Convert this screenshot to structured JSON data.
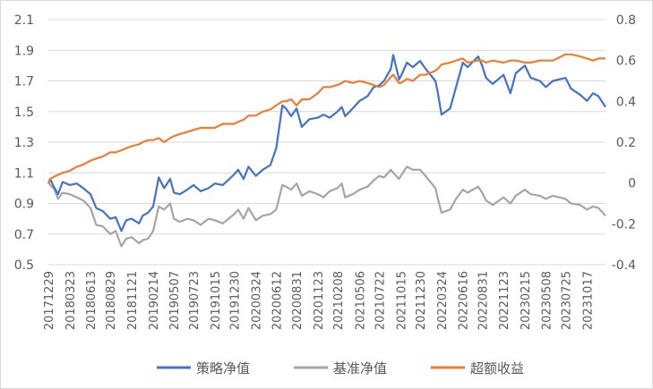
{
  "chart_data": {
    "type": "line",
    "y_left": {
      "min": 0.5,
      "max": 2.1,
      "ticks": [
        "2.1",
        "1.9",
        "1.7",
        "1.5",
        "1.3",
        "1.1",
        "0.9",
        "0.7",
        "0.5"
      ]
    },
    "y_right": {
      "min": -0.4,
      "max": 0.8,
      "ticks": [
        "0.8",
        "0.6",
        "0.4",
        "0.2",
        "0",
        "-0.2",
        "-0.4"
      ]
    },
    "x_ticks": [
      "20171229",
      "20180323",
      "20180613",
      "20180829",
      "20181121",
      "20190214",
      "20190507",
      "20190723",
      "20191015",
      "20191230",
      "20200324",
      "20200612",
      "20200831",
      "20201123",
      "20210208",
      "20210506",
      "20210722",
      "20211015",
      "20211230",
      "20220324",
      "20220616",
      "20220831",
      "20221123",
      "20230215",
      "20230508",
      "20230725",
      "20231017"
    ],
    "grid": true,
    "legend_position": "bottom",
    "series": [
      {
        "name": "策略净值",
        "axis": "left",
        "color": "#4472c4",
        "values": [
          [
            "20171229",
            1.03
          ],
          [
            "20180105",
            1.06
          ],
          [
            "20180119",
            1.01
          ],
          [
            "20180205",
            0.96
          ],
          [
            "20180223",
            1.04
          ],
          [
            "20180323",
            1.02
          ],
          [
            "20180420",
            1.03
          ],
          [
            "20180515",
            1.0
          ],
          [
            "20180613",
            0.96
          ],
          [
            "20180705",
            0.87
          ],
          [
            "20180731",
            0.85
          ],
          [
            "20180829",
            0.8
          ],
          [
            "20180920",
            0.81
          ],
          [
            "20181012",
            0.72
          ],
          [
            "20181031",
            0.79
          ],
          [
            "20181121",
            0.8
          ],
          [
            "20181221",
            0.77
          ],
          [
            "20190104",
            0.82
          ],
          [
            "20190125",
            0.84
          ],
          [
            "20190214",
            0.88
          ],
          [
            "20190308",
            1.07
          ],
          [
            "20190329",
            1.0
          ],
          [
            "20190422",
            1.06
          ],
          [
            "20190507",
            0.97
          ],
          [
            "20190530",
            0.96
          ],
          [
            "20190628",
            0.99
          ],
          [
            "20190723",
            1.02
          ],
          [
            "20190820",
            0.98
          ],
          [
            "20190920",
            1.0
          ],
          [
            "20191015",
            1.03
          ],
          [
            "20191115",
            1.02
          ],
          [
            "20191230",
            1.09
          ],
          [
            "20200114",
            1.12
          ],
          [
            "20200205",
            1.06
          ],
          [
            "20200224",
            1.14
          ],
          [
            "20200324",
            1.08
          ],
          [
            "20200420",
            1.12
          ],
          [
            "20200520",
            1.15
          ],
          [
            "20200612",
            1.26
          ],
          [
            "20200706",
            1.54
          ],
          [
            "20200720",
            1.52
          ],
          [
            "20200810",
            1.47
          ],
          [
            "20200831",
            1.52
          ],
          [
            "20200921",
            1.4
          ],
          [
            "20201020",
            1.45
          ],
          [
            "20201123",
            1.46
          ],
          [
            "20201215",
            1.48
          ],
          [
            "20210108",
            1.46
          ],
          [
            "20210208",
            1.5
          ],
          [
            "20210225",
            1.53
          ],
          [
            "20210310",
            1.47
          ],
          [
            "20210409",
            1.52
          ],
          [
            "20210506",
            1.57
          ],
          [
            "20210606",
            1.6
          ],
          [
            "20210630",
            1.66
          ],
          [
            "20210722",
            1.67
          ],
          [
            "20210810",
            1.7
          ],
          [
            "20210906",
            1.78
          ],
          [
            "20210915",
            1.87
          ],
          [
            "20211008",
            1.71
          ],
          [
            "20211015",
            1.73
          ],
          [
            "20211108",
            1.82
          ],
          [
            "20211201",
            1.79
          ],
          [
            "20211230",
            1.83
          ],
          [
            "20220120",
            1.78
          ],
          [
            "20220228",
            1.7
          ],
          [
            "20220310",
            1.62
          ],
          [
            "20220324",
            1.48
          ],
          [
            "20220427",
            1.52
          ],
          [
            "20220520",
            1.66
          ],
          [
            "20220616",
            1.82
          ],
          [
            "20220705",
            1.79
          ],
          [
            "20220815",
            1.86
          ],
          [
            "20220831",
            1.8
          ],
          [
            "20220915",
            1.72
          ],
          [
            "20221011",
            1.68
          ],
          [
            "20221123",
            1.74
          ],
          [
            "20221220",
            1.62
          ],
          [
            "20230110",
            1.75
          ],
          [
            "20230215",
            1.8
          ],
          [
            "20230310",
            1.72
          ],
          [
            "20230415",
            1.7
          ],
          [
            "20230508",
            1.66
          ],
          [
            "20230605",
            1.7
          ],
          [
            "20230725",
            1.72
          ],
          [
            "20230815",
            1.65
          ],
          [
            "20230920",
            1.61
          ],
          [
            "20231017",
            1.57
          ],
          [
            "20231110",
            1.62
          ],
          [
            "20231201",
            1.6
          ],
          [
            "20231229",
            1.53
          ]
        ]
      },
      {
        "name": "基准净值",
        "axis": "left",
        "color": "#a5a5a5",
        "values": [
          [
            "20171229",
            1.04
          ],
          [
            "20180105",
            1.02
          ],
          [
            "20180119",
            1.0
          ],
          [
            "20180205",
            0.93
          ],
          [
            "20180223",
            0.97
          ],
          [
            "20180323",
            0.96
          ],
          [
            "20180420",
            0.94
          ],
          [
            "20180515",
            0.92
          ],
          [
            "20180613",
            0.87
          ],
          [
            "20180705",
            0.76
          ],
          [
            "20180731",
            0.75
          ],
          [
            "20180829",
            0.7
          ],
          [
            "20180920",
            0.72
          ],
          [
            "20181012",
            0.62
          ],
          [
            "20181031",
            0.67
          ],
          [
            "20181121",
            0.68
          ],
          [
            "20181221",
            0.64
          ],
          [
            "20190104",
            0.66
          ],
          [
            "20190125",
            0.67
          ],
          [
            "20190214",
            0.72
          ],
          [
            "20190308",
            0.88
          ],
          [
            "20190329",
            0.86
          ],
          [
            "20190422",
            0.9
          ],
          [
            "20190507",
            0.8
          ],
          [
            "20190530",
            0.78
          ],
          [
            "20190628",
            0.8
          ],
          [
            "20190723",
            0.79
          ],
          [
            "20190820",
            0.76
          ],
          [
            "20190920",
            0.8
          ],
          [
            "20191015",
            0.79
          ],
          [
            "20191115",
            0.77
          ],
          [
            "20191230",
            0.83
          ],
          [
            "20200114",
            0.86
          ],
          [
            "20200205",
            0.8
          ],
          [
            "20200224",
            0.87
          ],
          [
            "20200324",
            0.79
          ],
          [
            "20200420",
            0.82
          ],
          [
            "20200520",
            0.83
          ],
          [
            "20200612",
            0.86
          ],
          [
            "20200706",
            1.02
          ],
          [
            "20200720",
            1.01
          ],
          [
            "20200810",
            0.99
          ],
          [
            "20200831",
            1.03
          ],
          [
            "20200921",
            0.95
          ],
          [
            "20201020",
            0.98
          ],
          [
            "20201123",
            0.96
          ],
          [
            "20201215",
            0.94
          ],
          [
            "20210108",
            0.98
          ],
          [
            "20210208",
            1.0
          ],
          [
            "20210225",
            1.03
          ],
          [
            "20210310",
            0.94
          ],
          [
            "20210409",
            0.96
          ],
          [
            "20210506",
            0.99
          ],
          [
            "20210606",
            1.01
          ],
          [
            "20210630",
            1.05
          ],
          [
            "20210722",
            1.08
          ],
          [
            "20210810",
            1.07
          ],
          [
            "20210906",
            1.12
          ],
          [
            "20210915",
            1.1
          ],
          [
            "20211008",
            1.06
          ],
          [
            "20211015",
            1.08
          ],
          [
            "20211108",
            1.14
          ],
          [
            "20211201",
            1.12
          ],
          [
            "20211230",
            1.12
          ],
          [
            "20220120",
            1.08
          ],
          [
            "20220228",
            1.0
          ],
          [
            "20220310",
            0.93
          ],
          [
            "20220324",
            0.84
          ],
          [
            "20220427",
            0.86
          ],
          [
            "20220520",
            0.93
          ],
          [
            "20220616",
            0.99
          ],
          [
            "20220705",
            0.97
          ],
          [
            "20220815",
            1.01
          ],
          [
            "20220831",
            0.97
          ],
          [
            "20220915",
            0.92
          ],
          [
            "20221011",
            0.89
          ],
          [
            "20221123",
            0.94
          ],
          [
            "20221220",
            0.9
          ],
          [
            "20230110",
            0.95
          ],
          [
            "20230215",
            0.99
          ],
          [
            "20230310",
            0.96
          ],
          [
            "20230415",
            0.95
          ],
          [
            "20230508",
            0.93
          ],
          [
            "20230605",
            0.95
          ],
          [
            "20230725",
            0.93
          ],
          [
            "20230815",
            0.9
          ],
          [
            "20230920",
            0.89
          ],
          [
            "20231017",
            0.86
          ],
          [
            "20231110",
            0.88
          ],
          [
            "20231201",
            0.87
          ],
          [
            "20231229",
            0.82
          ]
        ]
      },
      {
        "name": "超额收益",
        "axis": "right",
        "color": "#ed7d31",
        "values": [
          [
            "20171229",
            0.0
          ],
          [
            "20180105",
            0.02
          ],
          [
            "20180119",
            0.03
          ],
          [
            "20180205",
            0.04
          ],
          [
            "20180223",
            0.05
          ],
          [
            "20180323",
            0.06
          ],
          [
            "20180420",
            0.08
          ],
          [
            "20180515",
            0.09
          ],
          [
            "20180613",
            0.11
          ],
          [
            "20180705",
            0.12
          ],
          [
            "20180731",
            0.13
          ],
          [
            "20180829",
            0.15
          ],
          [
            "20180920",
            0.15
          ],
          [
            "20181012",
            0.16
          ],
          [
            "20181031",
            0.17
          ],
          [
            "20181121",
            0.18
          ],
          [
            "20181221",
            0.19
          ],
          [
            "20190104",
            0.2
          ],
          [
            "20190125",
            0.21
          ],
          [
            "20190214",
            0.21
          ],
          [
            "20190308",
            0.22
          ],
          [
            "20190329",
            0.2
          ],
          [
            "20190422",
            0.22
          ],
          [
            "20190507",
            0.23
          ],
          [
            "20190530",
            0.24
          ],
          [
            "20190628",
            0.25
          ],
          [
            "20190723",
            0.26
          ],
          [
            "20190820",
            0.27
          ],
          [
            "20190920",
            0.27
          ],
          [
            "20191015",
            0.27
          ],
          [
            "20191115",
            0.29
          ],
          [
            "20191230",
            0.29
          ],
          [
            "20200114",
            0.3
          ],
          [
            "20200205",
            0.31
          ],
          [
            "20200224",
            0.33
          ],
          [
            "20200324",
            0.33
          ],
          [
            "20200420",
            0.35
          ],
          [
            "20200520",
            0.36
          ],
          [
            "20200612",
            0.38
          ],
          [
            "20200706",
            0.4
          ],
          [
            "20200720",
            0.4
          ],
          [
            "20200810",
            0.41
          ],
          [
            "20200831",
            0.38
          ],
          [
            "20200921",
            0.41
          ],
          [
            "20201020",
            0.41
          ],
          [
            "20201123",
            0.44
          ],
          [
            "20201215",
            0.47
          ],
          [
            "20210108",
            0.47
          ],
          [
            "20210208",
            0.48
          ],
          [
            "20210225",
            0.49
          ],
          [
            "20210310",
            0.5
          ],
          [
            "20210409",
            0.49
          ],
          [
            "20210506",
            0.5
          ],
          [
            "20210606",
            0.49
          ],
          [
            "20210630",
            0.48
          ],
          [
            "20210722",
            0.47
          ],
          [
            "20210810",
            0.48
          ],
          [
            "20210906",
            0.52
          ],
          [
            "20210915",
            0.53
          ],
          [
            "20211008",
            0.49
          ],
          [
            "20211015",
            0.49
          ],
          [
            "20211108",
            0.51
          ],
          [
            "20211201",
            0.5
          ],
          [
            "20211230",
            0.53
          ],
          [
            "20220120",
            0.53
          ],
          [
            "20220228",
            0.55
          ],
          [
            "20220310",
            0.56
          ],
          [
            "20220324",
            0.58
          ],
          [
            "20220427",
            0.59
          ],
          [
            "20220520",
            0.6
          ],
          [
            "20220616",
            0.61
          ],
          [
            "20220705",
            0.59
          ],
          [
            "20220815",
            0.6
          ],
          [
            "20220831",
            0.6
          ],
          [
            "20220915",
            0.59
          ],
          [
            "20221011",
            0.6
          ],
          [
            "20221123",
            0.59
          ],
          [
            "20221220",
            0.6
          ],
          [
            "20230110",
            0.6
          ],
          [
            "20230215",
            0.59
          ],
          [
            "20230310",
            0.59
          ],
          [
            "20230415",
            0.6
          ],
          [
            "20230508",
            0.6
          ],
          [
            "20230605",
            0.6
          ],
          [
            "20230725",
            0.63
          ],
          [
            "20230815",
            0.63
          ],
          [
            "20230920",
            0.62
          ],
          [
            "20231017",
            0.61
          ],
          [
            "20231110",
            0.6
          ],
          [
            "20231201",
            0.61
          ],
          [
            "20231229",
            0.61
          ]
        ]
      }
    ]
  }
}
